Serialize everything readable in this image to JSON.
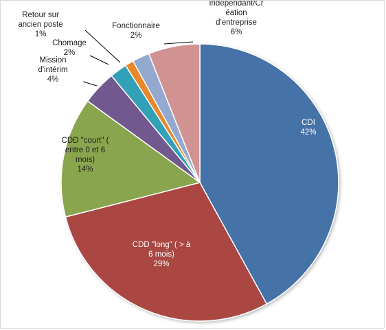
{
  "chart_data": {
    "type": "pie",
    "title": "",
    "legend": "none",
    "slices": [
      {
        "name": "CDI",
        "value": 42,
        "label": "42%",
        "color": "#4572A7",
        "label_lines": [
          "CDI"
        ],
        "text_color": "#ffffff"
      },
      {
        "name": "CDD \"long\" ( > à 6 mois)",
        "value": 29,
        "label": "29%",
        "color": "#AA4643",
        "label_lines": [
          "CDD \"long\" ( > à",
          "6 mois)"
        ],
        "text_color": "#ffffff"
      },
      {
        "name": "CDD \"court\" ( entre 0 et 6 mois)",
        "value": 14,
        "label": "14%",
        "color": "#89A54E",
        "label_lines": [
          "CDD \"court\" (",
          "entre 0 et 6",
          "mois)"
        ],
        "text_color": "#1f1f1f"
      },
      {
        "name": "Mission d'intérim",
        "value": 4,
        "label": "4%",
        "color": "#71588F",
        "label_lines": [
          "Mission",
          "d'intérim"
        ],
        "text_color": "#1f1f1f"
      },
      {
        "name": "Chomage",
        "value": 2,
        "label": "2%",
        "color": "#31A1B7",
        "label_lines": [
          "Chomage"
        ],
        "text_color": "#1f1f1f"
      },
      {
        "name": "Retour sur ancien poste",
        "value": 1,
        "label": "1%",
        "color": "#E8882C",
        "label_lines": [
          "Retour sur",
          "ancien poste"
        ],
        "text_color": "#1f1f1f"
      },
      {
        "name": "Fonctionnaire",
        "value": 2,
        "label": "2%",
        "color": "#93A9CF",
        "label_lines": [
          "Fonctionnaire"
        ],
        "text_color": "#1f1f1f"
      },
      {
        "name": "Indépendant/Création d'entreprise",
        "value": 6,
        "label": "6%",
        "color": "#D19392",
        "label_lines": [
          "Indépendant/Cr",
          "éation",
          "d'entreprise"
        ],
        "text_color": "#1f1f1f"
      }
    ]
  }
}
